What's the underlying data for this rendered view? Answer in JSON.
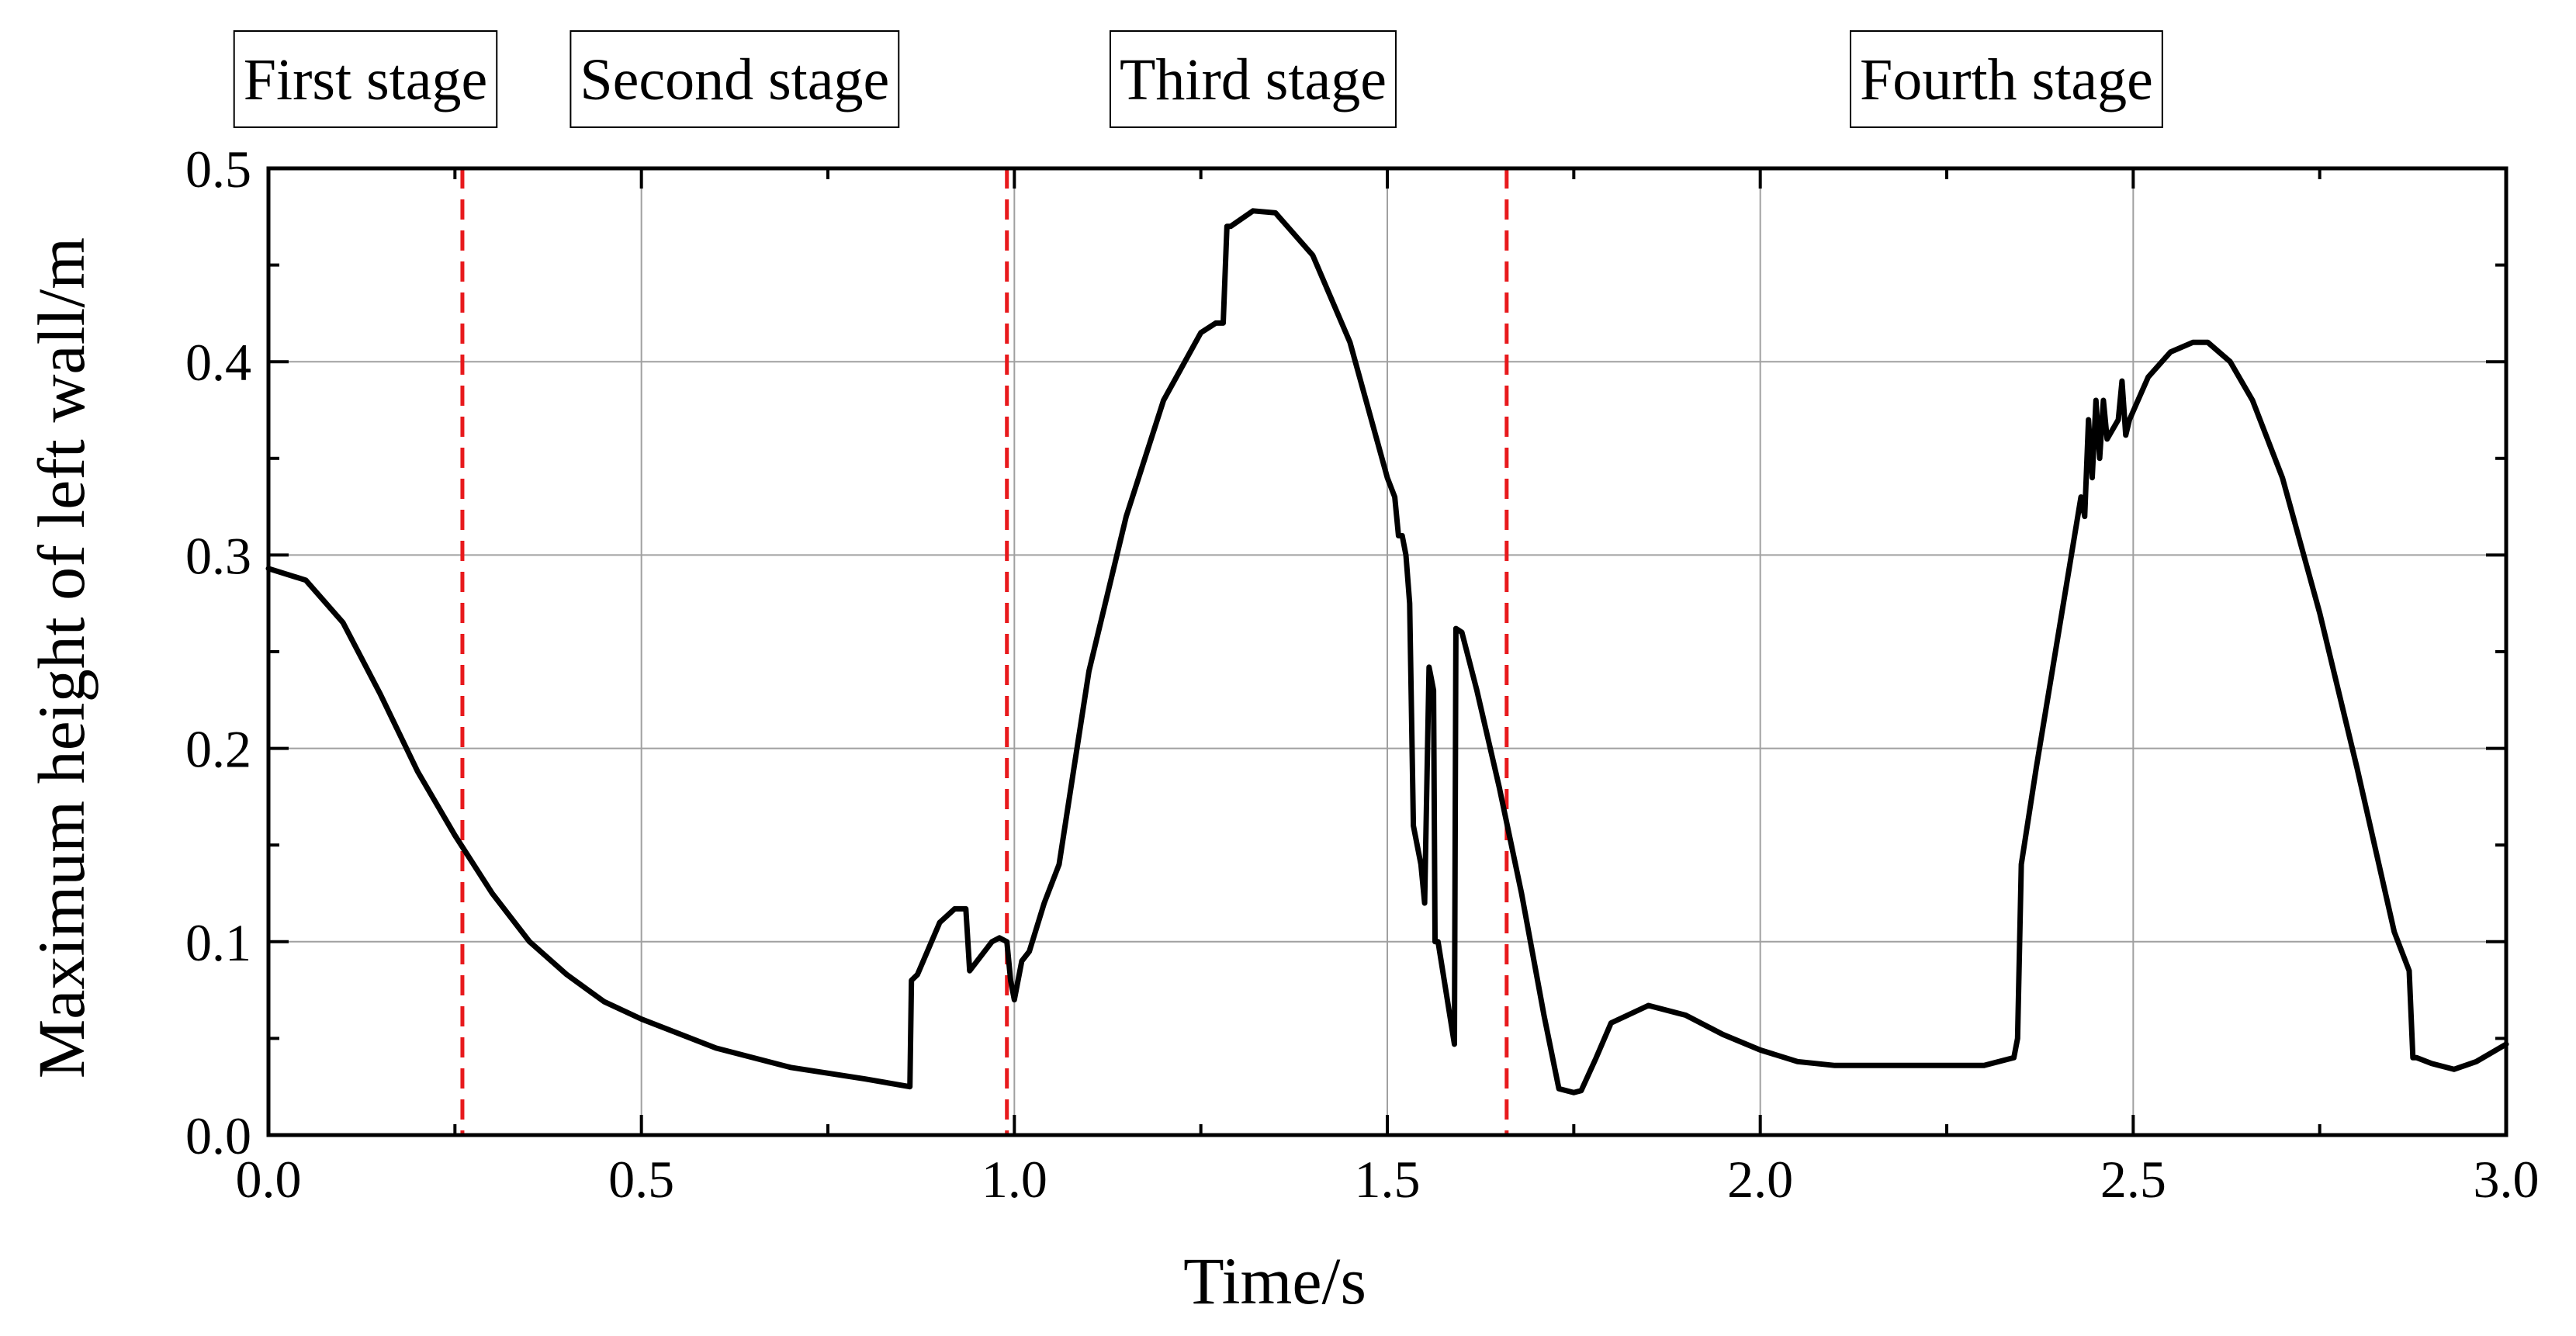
{
  "chart_data": {
    "type": "line",
    "title": "",
    "xlabel": "Time/s",
    "ylabel": "Maximum height of left wall/m",
    "xlim": [
      0.0,
      3.0
    ],
    "ylim": [
      0.0,
      0.5
    ],
    "xticks": [
      0.0,
      0.5,
      1.0,
      1.5,
      2.0,
      2.5,
      3.0
    ],
    "xtick_labels": [
      "0.0",
      "0.5",
      "1.0",
      "1.5",
      "2.0",
      "2.5",
      "3.0"
    ],
    "yticks": [
      0.0,
      0.1,
      0.2,
      0.3,
      0.4,
      0.5
    ],
    "ytick_labels": [
      "0.0",
      "0.1",
      "0.2",
      "0.3",
      "0.4",
      "0.5"
    ],
    "grid": true,
    "line_color": "#000000",
    "boundary_color": "#e8191c",
    "stage_boundaries": [
      0.26,
      0.99,
      1.66
    ],
    "stage_labels": [
      {
        "text": "First stage",
        "x": 0.13
      },
      {
        "text": "Second stage",
        "x": 0.625
      },
      {
        "text": "Third stage",
        "x": 1.32
      },
      {
        "text": "Fourth stage",
        "x": 2.33
      }
    ],
    "series": [
      {
        "name": "Maximum height of left wall",
        "x": [
          0.0,
          0.05,
          0.1,
          0.15,
          0.2,
          0.25,
          0.3,
          0.35,
          0.4,
          0.45,
          0.5,
          0.6,
          0.7,
          0.8,
          0.86,
          0.862,
          0.87,
          0.9,
          0.92,
          0.935,
          0.94,
          0.96,
          0.97,
          0.98,
          0.99,
          0.995,
          1.0,
          1.01,
          1.02,
          1.04,
          1.06,
          1.08,
          1.1,
          1.15,
          1.2,
          1.25,
          1.27,
          1.28,
          1.285,
          1.29,
          1.32,
          1.35,
          1.4,
          1.45,
          1.5,
          1.51,
          1.515,
          1.52,
          1.525,
          1.53,
          1.535,
          1.545,
          1.55,
          1.556,
          1.558,
          1.562,
          1.564,
          1.568,
          1.59,
          1.592,
          1.6,
          1.62,
          1.65,
          1.68,
          1.71,
          1.73,
          1.75,
          1.76,
          1.78,
          1.8,
          1.85,
          1.9,
          1.95,
          2.0,
          2.05,
          2.1,
          2.2,
          2.25,
          2.3,
          2.34,
          2.345,
          2.35,
          2.37,
          2.4,
          2.43,
          2.435,
          2.44,
          2.445,
          2.45,
          2.455,
          2.46,
          2.465,
          2.48,
          2.485,
          2.49,
          2.495,
          2.52,
          2.55,
          2.58,
          2.6,
          2.63,
          2.66,
          2.7,
          2.75,
          2.8,
          2.85,
          2.87,
          2.875,
          2.88,
          2.9,
          2.93,
          2.96,
          3.0
        ],
        "y": [
          0.293,
          0.287,
          0.265,
          0.228,
          0.188,
          0.155,
          0.125,
          0.1,
          0.083,
          0.069,
          0.06,
          0.045,
          0.035,
          0.029,
          0.025,
          0.08,
          0.083,
          0.11,
          0.117,
          0.117,
          0.085,
          0.095,
          0.1,
          0.102,
          0.1,
          0.08,
          0.07,
          0.09,
          0.095,
          0.12,
          0.14,
          0.19,
          0.24,
          0.32,
          0.38,
          0.415,
          0.42,
          0.42,
          0.47,
          0.47,
          0.478,
          0.477,
          0.455,
          0.41,
          0.34,
          0.33,
          0.31,
          0.31,
          0.3,
          0.275,
          0.16,
          0.14,
          0.12,
          0.242,
          0.238,
          0.23,
          0.1,
          0.1,
          0.047,
          0.262,
          0.26,
          0.23,
          0.18,
          0.125,
          0.062,
          0.024,
          0.022,
          0.023,
          0.04,
          0.058,
          0.067,
          0.062,
          0.052,
          0.044,
          0.038,
          0.036,
          0.036,
          0.036,
          0.036,
          0.04,
          0.05,
          0.14,
          0.19,
          0.26,
          0.33,
          0.32,
          0.37,
          0.34,
          0.38,
          0.35,
          0.38,
          0.36,
          0.37,
          0.39,
          0.362,
          0.37,
          0.392,
          0.405,
          0.41,
          0.41,
          0.4,
          0.38,
          0.34,
          0.27,
          0.19,
          0.105,
          0.085,
          0.04,
          0.04,
          0.037,
          0.034,
          0.038,
          0.047
        ]
      }
    ]
  }
}
